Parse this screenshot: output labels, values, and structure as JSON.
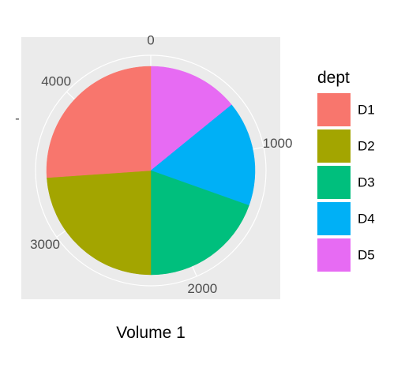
{
  "chart_data": {
    "type": "pie",
    "xlabel": "Volume 1",
    "legend_title": "dept",
    "legend_position": "right",
    "categories": [
      "D1",
      "D2",
      "D3",
      "D4",
      "D5"
    ],
    "values": [
      1200,
      1100,
      900,
      750,
      650
    ],
    "colors": [
      "#F8766D",
      "#A3A500",
      "#00BF7D",
      "#00B0F6",
      "#E76BF3"
    ],
    "axis_ticks": [
      {
        "value": 0,
        "label": "0"
      },
      {
        "value": 1000,
        "label": "1000"
      },
      {
        "value": 2000,
        "label": "2000"
      },
      {
        "value": 3000,
        "label": "3000"
      },
      {
        "value": 4000,
        "label": "4000"
      }
    ],
    "axis_total": 4600,
    "y_tick_label": "-",
    "panel_background": "#EBEBEB",
    "grid_color": "#FFFFFF"
  }
}
